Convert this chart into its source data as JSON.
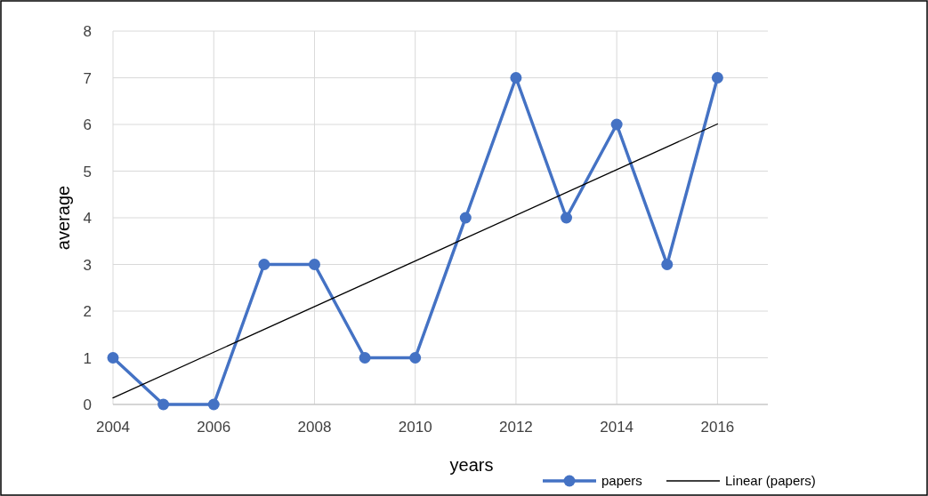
{
  "chart_data": {
    "type": "line",
    "xlabel": "years",
    "ylabel": "average",
    "xlim": [
      2004,
      2017
    ],
    "xticks": [
      2004,
      2006,
      2008,
      2010,
      2012,
      2014,
      2016
    ],
    "ylim": [
      0,
      8
    ],
    "yticks": [
      0,
      1,
      2,
      3,
      4,
      5,
      6,
      7,
      8
    ],
    "grid": true,
    "legend": "bottom right",
    "series": [
      {
        "name": "papers",
        "color": "#4472c4",
        "marker": "circle",
        "x": [
          2004,
          2005,
          2006,
          2007,
          2008,
          2009,
          2010,
          2011,
          2012,
          2013,
          2014,
          2015,
          2016
        ],
        "values": [
          1,
          0,
          0,
          3,
          3,
          1,
          1,
          4,
          7,
          4,
          6,
          3,
          7
        ]
      },
      {
        "name": "Linear (papers)",
        "type": "line",
        "color": "#000000",
        "marker": "none",
        "x": [
          2004,
          2016
        ],
        "values": [
          0.14,
          6.01
        ]
      }
    ]
  }
}
